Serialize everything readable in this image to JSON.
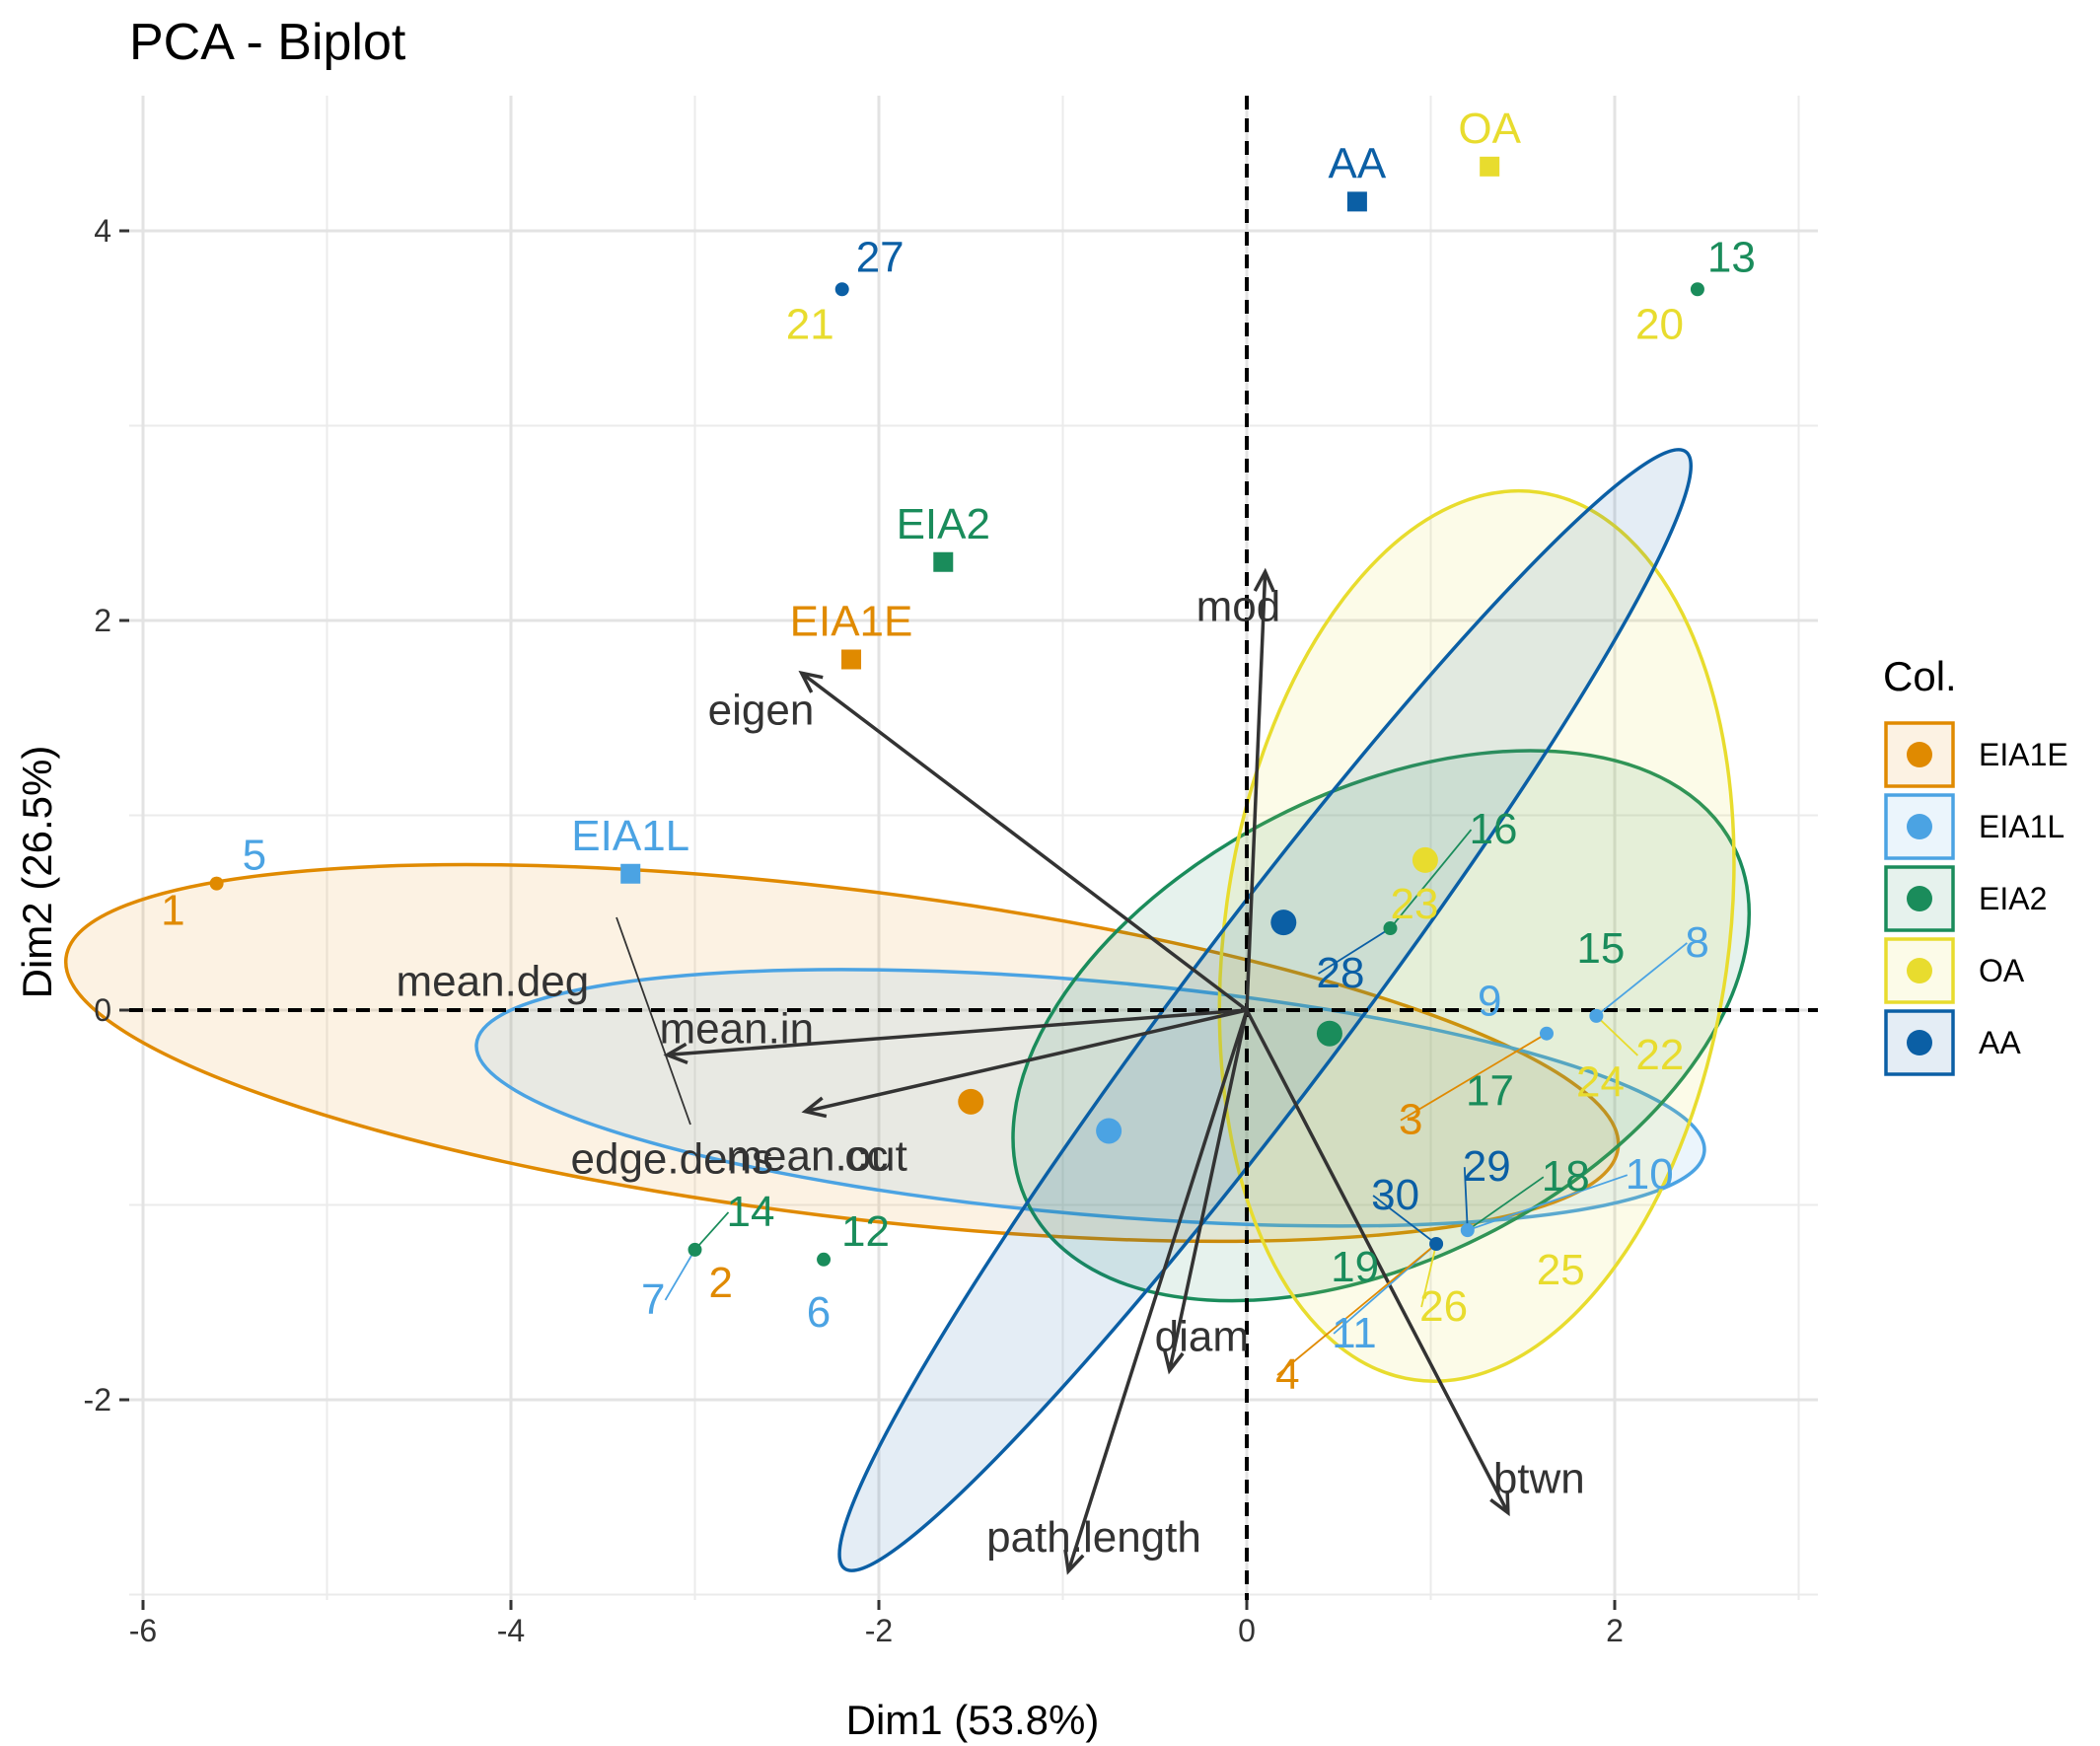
{
  "chart_data": {
    "type": "scatter",
    "title": "PCA - Biplot",
    "xlabel": "Dim1 (53.8%)",
    "ylabel": "Dim2 (26.5%)",
    "xlim": [
      -6.2,
      3.1
    ],
    "ylim": [
      -3.0,
      4.7
    ],
    "x_ticks": [
      -6,
      -4,
      -2,
      0,
      2
    ],
    "y_ticks": [
      -2,
      0,
      2,
      4
    ],
    "x_tick_labels": [
      "-6",
      "-4",
      "-2",
      "0",
      "2"
    ],
    "y_tick_labels": [
      "-2",
      "0",
      "2",
      "4"
    ],
    "grid": true,
    "legend": {
      "title": "Col.",
      "position": "right",
      "entries": [
        "EIA1E",
        "EIA1L",
        "EIA2",
        "OA",
        "AA"
      ]
    },
    "colors": {
      "EIA1E": "#E08A00",
      "EIA1L": "#4BA3E3",
      "EIA2": "#1A8C5B",
      "OA": "#E8DC2E",
      "AA": "#0B5FA5",
      "arrow": "#333333"
    },
    "groups": [
      {
        "name": "EIA1E",
        "mean": [
          -1.5,
          -0.47
        ],
        "centroid": [
          -2.15,
          1.8
        ],
        "centroid_label": "EIA1E",
        "ellipse": {
          "cx": -2.2,
          "cy": -0.22,
          "rx": 4.25,
          "ry": 0.84,
          "angle": -7
        }
      },
      {
        "name": "EIA1L",
        "mean": [
          -0.75,
          -0.62
        ],
        "centroid": [
          -3.35,
          0.7
        ],
        "centroid_label": "EIA1L",
        "ellipse": {
          "cx": -0.85,
          "cy": -0.45,
          "rx": 3.35,
          "ry": 0.6,
          "angle": -5
        }
      },
      {
        "name": "EIA2",
        "mean": [
          0.45,
          -0.12
        ],
        "centroid": [
          -1.65,
          2.3
        ],
        "centroid_label": "EIA2",
        "ellipse": {
          "cx": 0.73,
          "cy": -0.08,
          "rx": 2.15,
          "ry": 1.2,
          "angle": 27
        }
      },
      {
        "name": "OA",
        "mean": [
          0.97,
          0.77
        ],
        "centroid": [
          1.32,
          4.33
        ],
        "centroid_label": "OA",
        "ellipse": {
          "cx": 1.25,
          "cy": 0.38,
          "rx": 1.37,
          "ry": 2.3,
          "angle": -8
        }
      },
      {
        "name": "AA",
        "mean": [
          0.2,
          0.45
        ],
        "centroid": [
          0.6,
          4.15
        ],
        "centroid_label": "AA",
        "ellipse": {
          "cx": 0.1,
          "cy": 0.0,
          "rx": 3.8,
          "ry": 0.42,
          "angle": 53
        }
      }
    ],
    "points": [
      {
        "label": "1",
        "group": "EIA1E",
        "x": -5.6,
        "y": 0.65
      },
      {
        "label": "5",
        "group": "EIA1L",
        "x": -5.6,
        "y": 0.65
      },
      {
        "label": "27",
        "group": "AA",
        "x": -2.2,
        "y": 3.7
      },
      {
        "label": "21",
        "group": "OA",
        "x": -2.2,
        "y": 3.7
      },
      {
        "label": "13",
        "group": "EIA2",
        "x": 2.45,
        "y": 3.7
      },
      {
        "label": "20",
        "group": "OA",
        "x": 2.45,
        "y": 3.7
      },
      {
        "label": "14",
        "group": "EIA2",
        "x": -3.0,
        "y": -1.23
      },
      {
        "label": "7",
        "group": "EIA1L",
        "x": -3.0,
        "y": -1.23
      },
      {
        "label": "2",
        "group": "EIA1E",
        "x": -3.0,
        "y": -1.23
      },
      {
        "label": "12",
        "group": "EIA2",
        "x": -2.3,
        "y": -1.28
      },
      {
        "label": "6",
        "group": "EIA1L",
        "x": -2.3,
        "y": -1.28
      },
      {
        "label": "16",
        "group": "EIA2",
        "x": 0.78,
        "y": 0.42
      },
      {
        "label": "23",
        "group": "OA",
        "x": 0.78,
        "y": 0.42
      },
      {
        "label": "28",
        "group": "AA",
        "x": 0.78,
        "y": 0.42
      },
      {
        "label": "8",
        "group": "EIA1L",
        "x": 1.9,
        "y": -0.03
      },
      {
        "label": "15",
        "group": "EIA2",
        "x": 1.9,
        "y": -0.03
      },
      {
        "label": "22",
        "group": "OA",
        "x": 1.9,
        "y": -0.03
      },
      {
        "label": "9",
        "group": "EIA1L",
        "x": 1.63,
        "y": -0.12
      },
      {
        "label": "17",
        "group": "EIA2",
        "x": 1.63,
        "y": -0.12
      },
      {
        "label": "24",
        "group": "OA",
        "x": 1.63,
        "y": -0.12
      },
      {
        "label": "3",
        "group": "EIA1E",
        "x": 1.63,
        "y": -0.12
      },
      {
        "label": "10",
        "group": "EIA1L",
        "x": 1.2,
        "y": -1.13
      },
      {
        "label": "18",
        "group": "EIA2",
        "x": 1.2,
        "y": -1.13
      },
      {
        "label": "29",
        "group": "AA",
        "x": 1.2,
        "y": -1.13
      },
      {
        "label": "25",
        "group": "OA",
        "x": 1.2,
        "y": -1.13
      },
      {
        "label": "30",
        "group": "AA",
        "x": 1.03,
        "y": -1.2
      },
      {
        "label": "19",
        "group": "EIA2",
        "x": 1.03,
        "y": -1.2
      },
      {
        "label": "26",
        "group": "OA",
        "x": 1.03,
        "y": -1.2
      },
      {
        "label": "11",
        "group": "EIA1L",
        "x": 1.03,
        "y": -1.2
      },
      {
        "label": "4",
        "group": "EIA1E",
        "x": 1.03,
        "y": -1.2
      }
    ],
    "variables": [
      {
        "name": "mod",
        "x": 0.1,
        "y": 2.25
      },
      {
        "name": "eigen",
        "x": -2.42,
        "y": 1.73
      },
      {
        "name": "mean.deg",
        "x": -3.15,
        "y": -0.23
      },
      {
        "name": "mean.in",
        "x": -3.15,
        "y": -0.23
      },
      {
        "name": "mean.out",
        "x": -2.4,
        "y": -0.52
      },
      {
        "name": "cc",
        "x": -2.4,
        "y": -0.52
      },
      {
        "name": "edge.dens",
        "x": -3.15,
        "y": -0.23
      },
      {
        "name": "diam",
        "x": -0.42,
        "y": -1.85
      },
      {
        "name": "path.length",
        "x": -0.97,
        "y": -2.88
      },
      {
        "name": "btwn",
        "x": 1.42,
        "y": -2.58
      }
    ]
  }
}
